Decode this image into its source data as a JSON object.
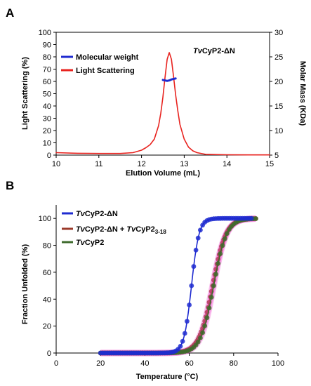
{
  "chart_data": [
    {
      "panel": "A",
      "type": "line",
      "annotation": "TvCyP2-ΔN",
      "annotation_italic": "Tv",
      "annotation_rest": "CyP2-ΔN",
      "xlabel": "Elution Volume (mL)",
      "ylabel": "Light Scattering (%)",
      "y2label": "Molar Mass (KDa)",
      "xlim": [
        10,
        15
      ],
      "ylim": [
        0,
        100
      ],
      "y2lim": [
        5,
        30
      ],
      "xticks": [
        "10",
        "11",
        "12",
        "13",
        "14",
        "15"
      ],
      "yticks": [
        "0",
        "10",
        "20",
        "30",
        "40",
        "50",
        "60",
        "70",
        "80",
        "90",
        "100"
      ],
      "y2ticks": [
        "5",
        "10",
        "15",
        "20",
        "25",
        "30"
      ],
      "grid": false,
      "legend_position": "top-left",
      "legend": [
        "Molecular weight",
        "Light Scattering"
      ],
      "series": [
        {
          "name": "Light Scattering",
          "color": "#e8231f",
          "axis": "left",
          "x": [
            10.0,
            10.5,
            11.0,
            11.5,
            11.8,
            12.0,
            12.1,
            12.2,
            12.3,
            12.4,
            12.45,
            12.5,
            12.55,
            12.6,
            12.65,
            12.7,
            12.75,
            12.8,
            12.85,
            12.9,
            13.0,
            13.1,
            13.2,
            13.3,
            13.5,
            14.0,
            14.5,
            15.0
          ],
          "y": [
            2.0,
            1.5,
            1.3,
            1.3,
            2.0,
            4.0,
            6.0,
            8.5,
            13.0,
            24.0,
            34.0,
            47.0,
            63.0,
            78.0,
            83.5,
            78.0,
            64.0,
            49.0,
            36.0,
            25.0,
            13.0,
            6.5,
            3.5,
            2.0,
            0.6,
            0.3,
            0.2,
            0.2
          ]
        },
        {
          "name": "Molecular weight",
          "color": "#1f2bd0",
          "axis": "right",
          "x": [
            12.5,
            12.55,
            12.6,
            12.65,
            12.7,
            12.75,
            12.8
          ],
          "y": [
            20.3,
            20.2,
            20.1,
            20.2,
            20.4,
            20.5,
            20.6
          ]
        }
      ]
    },
    {
      "panel": "B",
      "type": "scatter",
      "xlabel": "Temperature (°C)",
      "ylabel": "Fraction Unfolded (%)",
      "xlim": [
        0,
        100
      ],
      "ylim": [
        0,
        110
      ],
      "xticks": [
        "0",
        "20",
        "40",
        "60",
        "80",
        "100"
      ],
      "yticks": [
        "0",
        "20",
        "40",
        "60",
        "80",
        "100"
      ],
      "grid": false,
      "legend_position": "top-left",
      "legend": [
        {
          "italic": "Tv",
          "text": "CyP2-ΔN",
          "color": "#1f2bd0"
        },
        {
          "italic": "Tv",
          "text": "CyP2-ΔN + ",
          "italic2": "Tv",
          "text2": "CyP2",
          "sub": "3-18",
          "color": "#9b3a2a"
        },
        {
          "italic": "Tv",
          "text": "CyP2",
          "color": "#3e6b2c"
        }
      ],
      "series": [
        {
          "name": "TvCyP2-ΔN + TvCyP2 3-18",
          "color": "#9b3a2a",
          "fit_color": "#ee44cc",
          "tm": 70.5,
          "slope": 3.0,
          "x_start": 20,
          "x_end": 90,
          "x_step": 0.5
        },
        {
          "name": "TvCyP2",
          "color": "#3e6b2c",
          "fit_color": "#ee44cc",
          "tm": 71.0,
          "slope": 2.9,
          "x_start": 20,
          "x_end": 90,
          "x_step": 1
        },
        {
          "name": "TvCyP2-ΔN",
          "color": "#1f2bd0",
          "fit_color": "#1f2bd0",
          "tm": 61.0,
          "slope": 1.7,
          "x_start": 20,
          "x_end": 88,
          "x_step": 1
        }
      ]
    }
  ]
}
